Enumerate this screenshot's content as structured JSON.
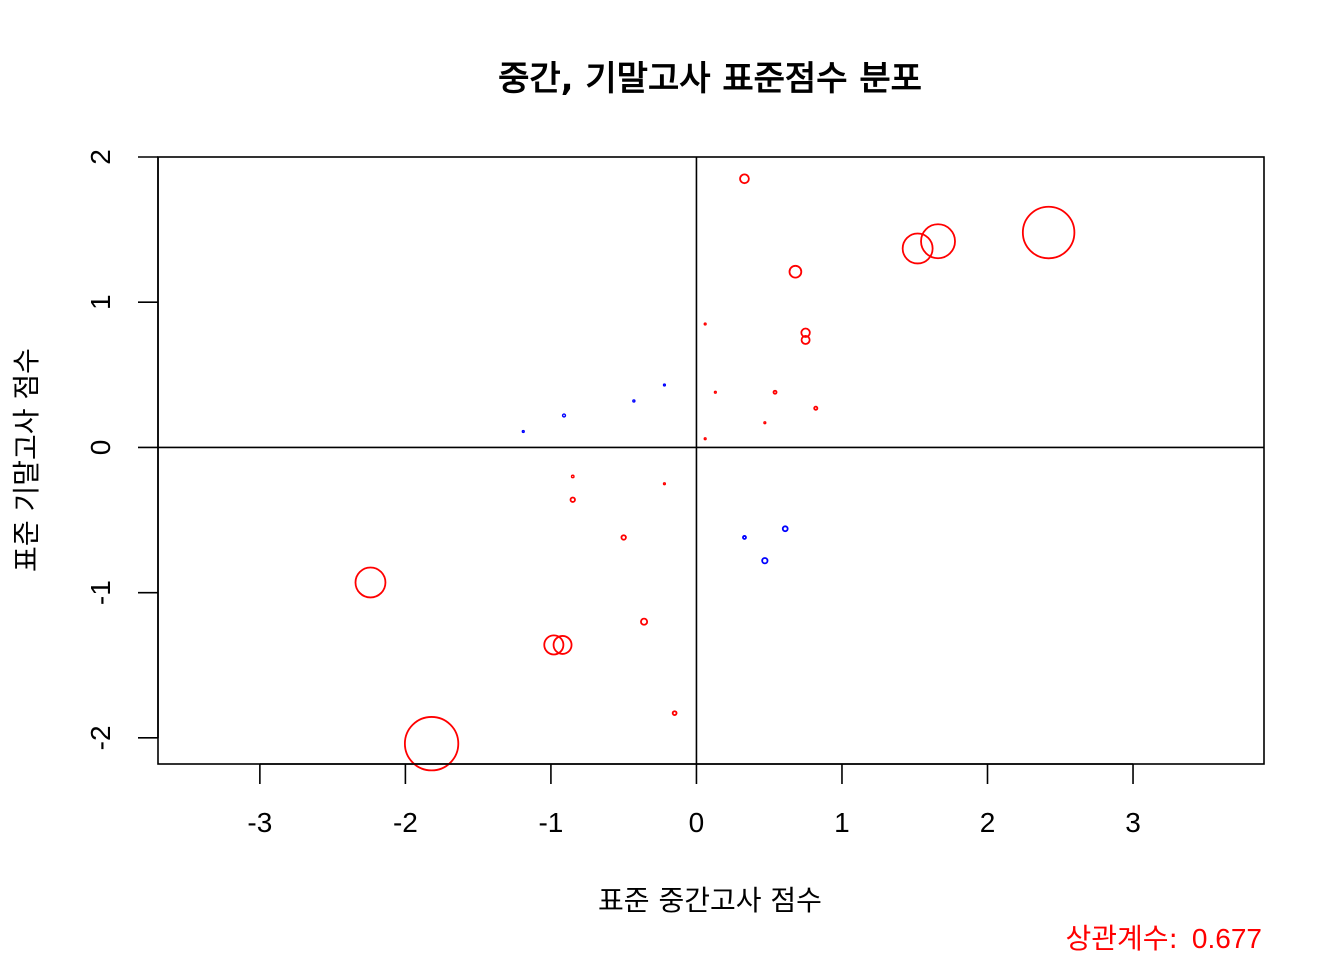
{
  "chart_data": {
    "type": "scatter",
    "title": "중간, 기말고사 표준점수 분포",
    "xlabel": "표준 중간고사 점수",
    "ylabel": "표준 기말고사 점수",
    "xlim": [
      -3.7,
      3.9
    ],
    "ylim": [
      -2.18,
      2.0
    ],
    "xticks": [
      -3,
      -2,
      -1,
      0,
      1,
      2,
      3
    ],
    "yticks": [
      -2,
      -1,
      0,
      1,
      2
    ],
    "reference_lines": {
      "x": 0,
      "y": 0
    },
    "grid": false,
    "point_style": "open circles, size proportional to product of scores",
    "colors": {
      "positive_product": "#ff0000",
      "negative_product": "#0000ff",
      "axes": "#000000"
    },
    "points": [
      {
        "x": 0.33,
        "y": 1.85,
        "color": "red",
        "size": 0.61
      },
      {
        "x": 2.42,
        "y": 1.48,
        "color": "red",
        "size": 3.58
      },
      {
        "x": 1.66,
        "y": 1.42,
        "color": "red",
        "size": 2.36
      },
      {
        "x": 1.52,
        "y": 1.37,
        "color": "red",
        "size": 2.08
      },
      {
        "x": 0.68,
        "y": 1.21,
        "color": "red",
        "size": 0.82
      },
      {
        "x": 0.75,
        "y": 0.79,
        "color": "red",
        "size": 0.59
      },
      {
        "x": 0.75,
        "y": 0.74,
        "color": "red",
        "size": 0.56
      },
      {
        "x": 0.06,
        "y": 0.85,
        "color": "red",
        "size": 0.05
      },
      {
        "x": 0.54,
        "y": 0.38,
        "color": "red",
        "size": 0.21
      },
      {
        "x": 0.82,
        "y": 0.27,
        "color": "red",
        "size": 0.22
      },
      {
        "x": 0.13,
        "y": 0.38,
        "color": "red",
        "size": 0.05
      },
      {
        "x": 0.47,
        "y": 0.17,
        "color": "red",
        "size": 0.08
      },
      {
        "x": 0.06,
        "y": 0.06,
        "color": "red",
        "size": 0.01
      },
      {
        "x": -0.22,
        "y": 0.43,
        "color": "blue",
        "size": 0.09
      },
      {
        "x": -0.43,
        "y": 0.32,
        "color": "blue",
        "size": 0.14
      },
      {
        "x": -0.91,
        "y": 0.22,
        "color": "blue",
        "size": 0.2
      },
      {
        "x": -1.19,
        "y": 0.11,
        "color": "blue",
        "size": 0.13
      },
      {
        "x": 0.33,
        "y": -0.62,
        "color": "blue",
        "size": 0.21
      },
      {
        "x": 0.61,
        "y": -0.56,
        "color": "blue",
        "size": 0.34
      },
      {
        "x": 0.47,
        "y": -0.78,
        "color": "blue",
        "size": 0.37
      },
      {
        "x": -0.85,
        "y": -0.2,
        "color": "red",
        "size": 0.17
      },
      {
        "x": -0.85,
        "y": -0.36,
        "color": "red",
        "size": 0.31
      },
      {
        "x": -0.22,
        "y": -0.25,
        "color": "red",
        "size": 0.06
      },
      {
        "x": -0.5,
        "y": -0.62,
        "color": "red",
        "size": 0.31
      },
      {
        "x": -0.36,
        "y": -1.2,
        "color": "red",
        "size": 0.43
      },
      {
        "x": -0.15,
        "y": -1.83,
        "color": "red",
        "size": 0.27
      },
      {
        "x": -2.24,
        "y": -0.93,
        "color": "red",
        "size": 2.08
      },
      {
        "x": -0.98,
        "y": -1.36,
        "color": "red",
        "size": 1.33
      },
      {
        "x": -0.92,
        "y": -1.36,
        "color": "red",
        "size": 1.25
      },
      {
        "x": -1.82,
        "y": -2.04,
        "color": "red",
        "size": 3.71
      }
    ]
  },
  "annotation": {
    "label": "상관계수:",
    "value": "0.677",
    "color": "#ff0000"
  }
}
